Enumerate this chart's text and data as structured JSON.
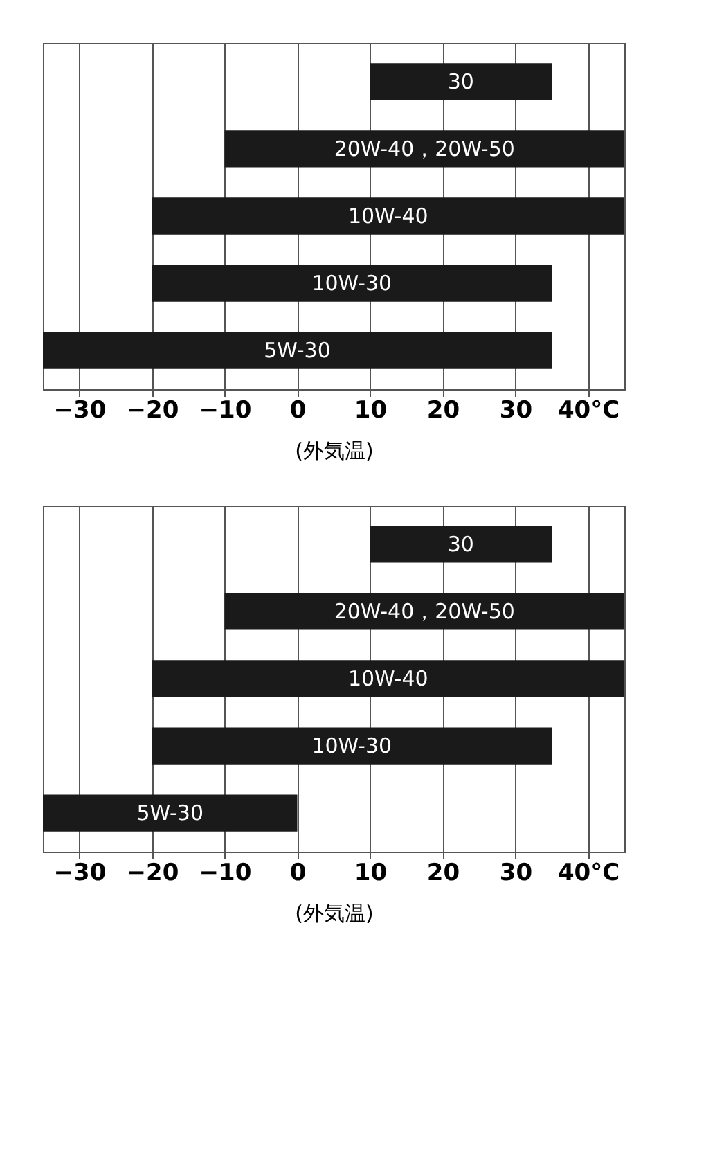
{
  "chart_data": [
    {
      "type": "bar",
      "orientation": "horizontal",
      "xlabel": "(外気温)",
      "categories": [
        "30",
        "20W-40，20W-50",
        "10W-40",
        "10W-30",
        "5W-30"
      ],
      "base": [
        10,
        -10,
        -20,
        -20,
        -35
      ],
      "values": [
        25,
        55,
        65,
        55,
        70
      ],
      "color": "#1a1a1a",
      "xlim": [
        -35,
        45
      ],
      "xticks": [
        -30,
        -20,
        -10,
        0,
        10,
        20,
        30,
        {
          "value": 40,
          "label": "40°C"
        }
      ],
      "grid": "x",
      "tick_labels": "x"
    },
    {
      "type": "bar",
      "orientation": "horizontal",
      "xlabel": "(外気温)",
      "categories": [
        "30",
        "20W-40，20W-50",
        "10W-40",
        "10W-30",
        "5W-30"
      ],
      "base": [
        10,
        -10,
        -20,
        -20,
        -35
      ],
      "values": [
        25,
        55,
        65,
        55,
        35
      ],
      "color": "#1a1a1a",
      "xlim": [
        -35,
        45
      ],
      "xticks": [
        -30,
        -20,
        -10,
        0,
        10,
        20,
        30,
        {
          "value": 40,
          "label": "40°C"
        }
      ],
      "grid": "x",
      "tick_labels": "x"
    }
  ]
}
